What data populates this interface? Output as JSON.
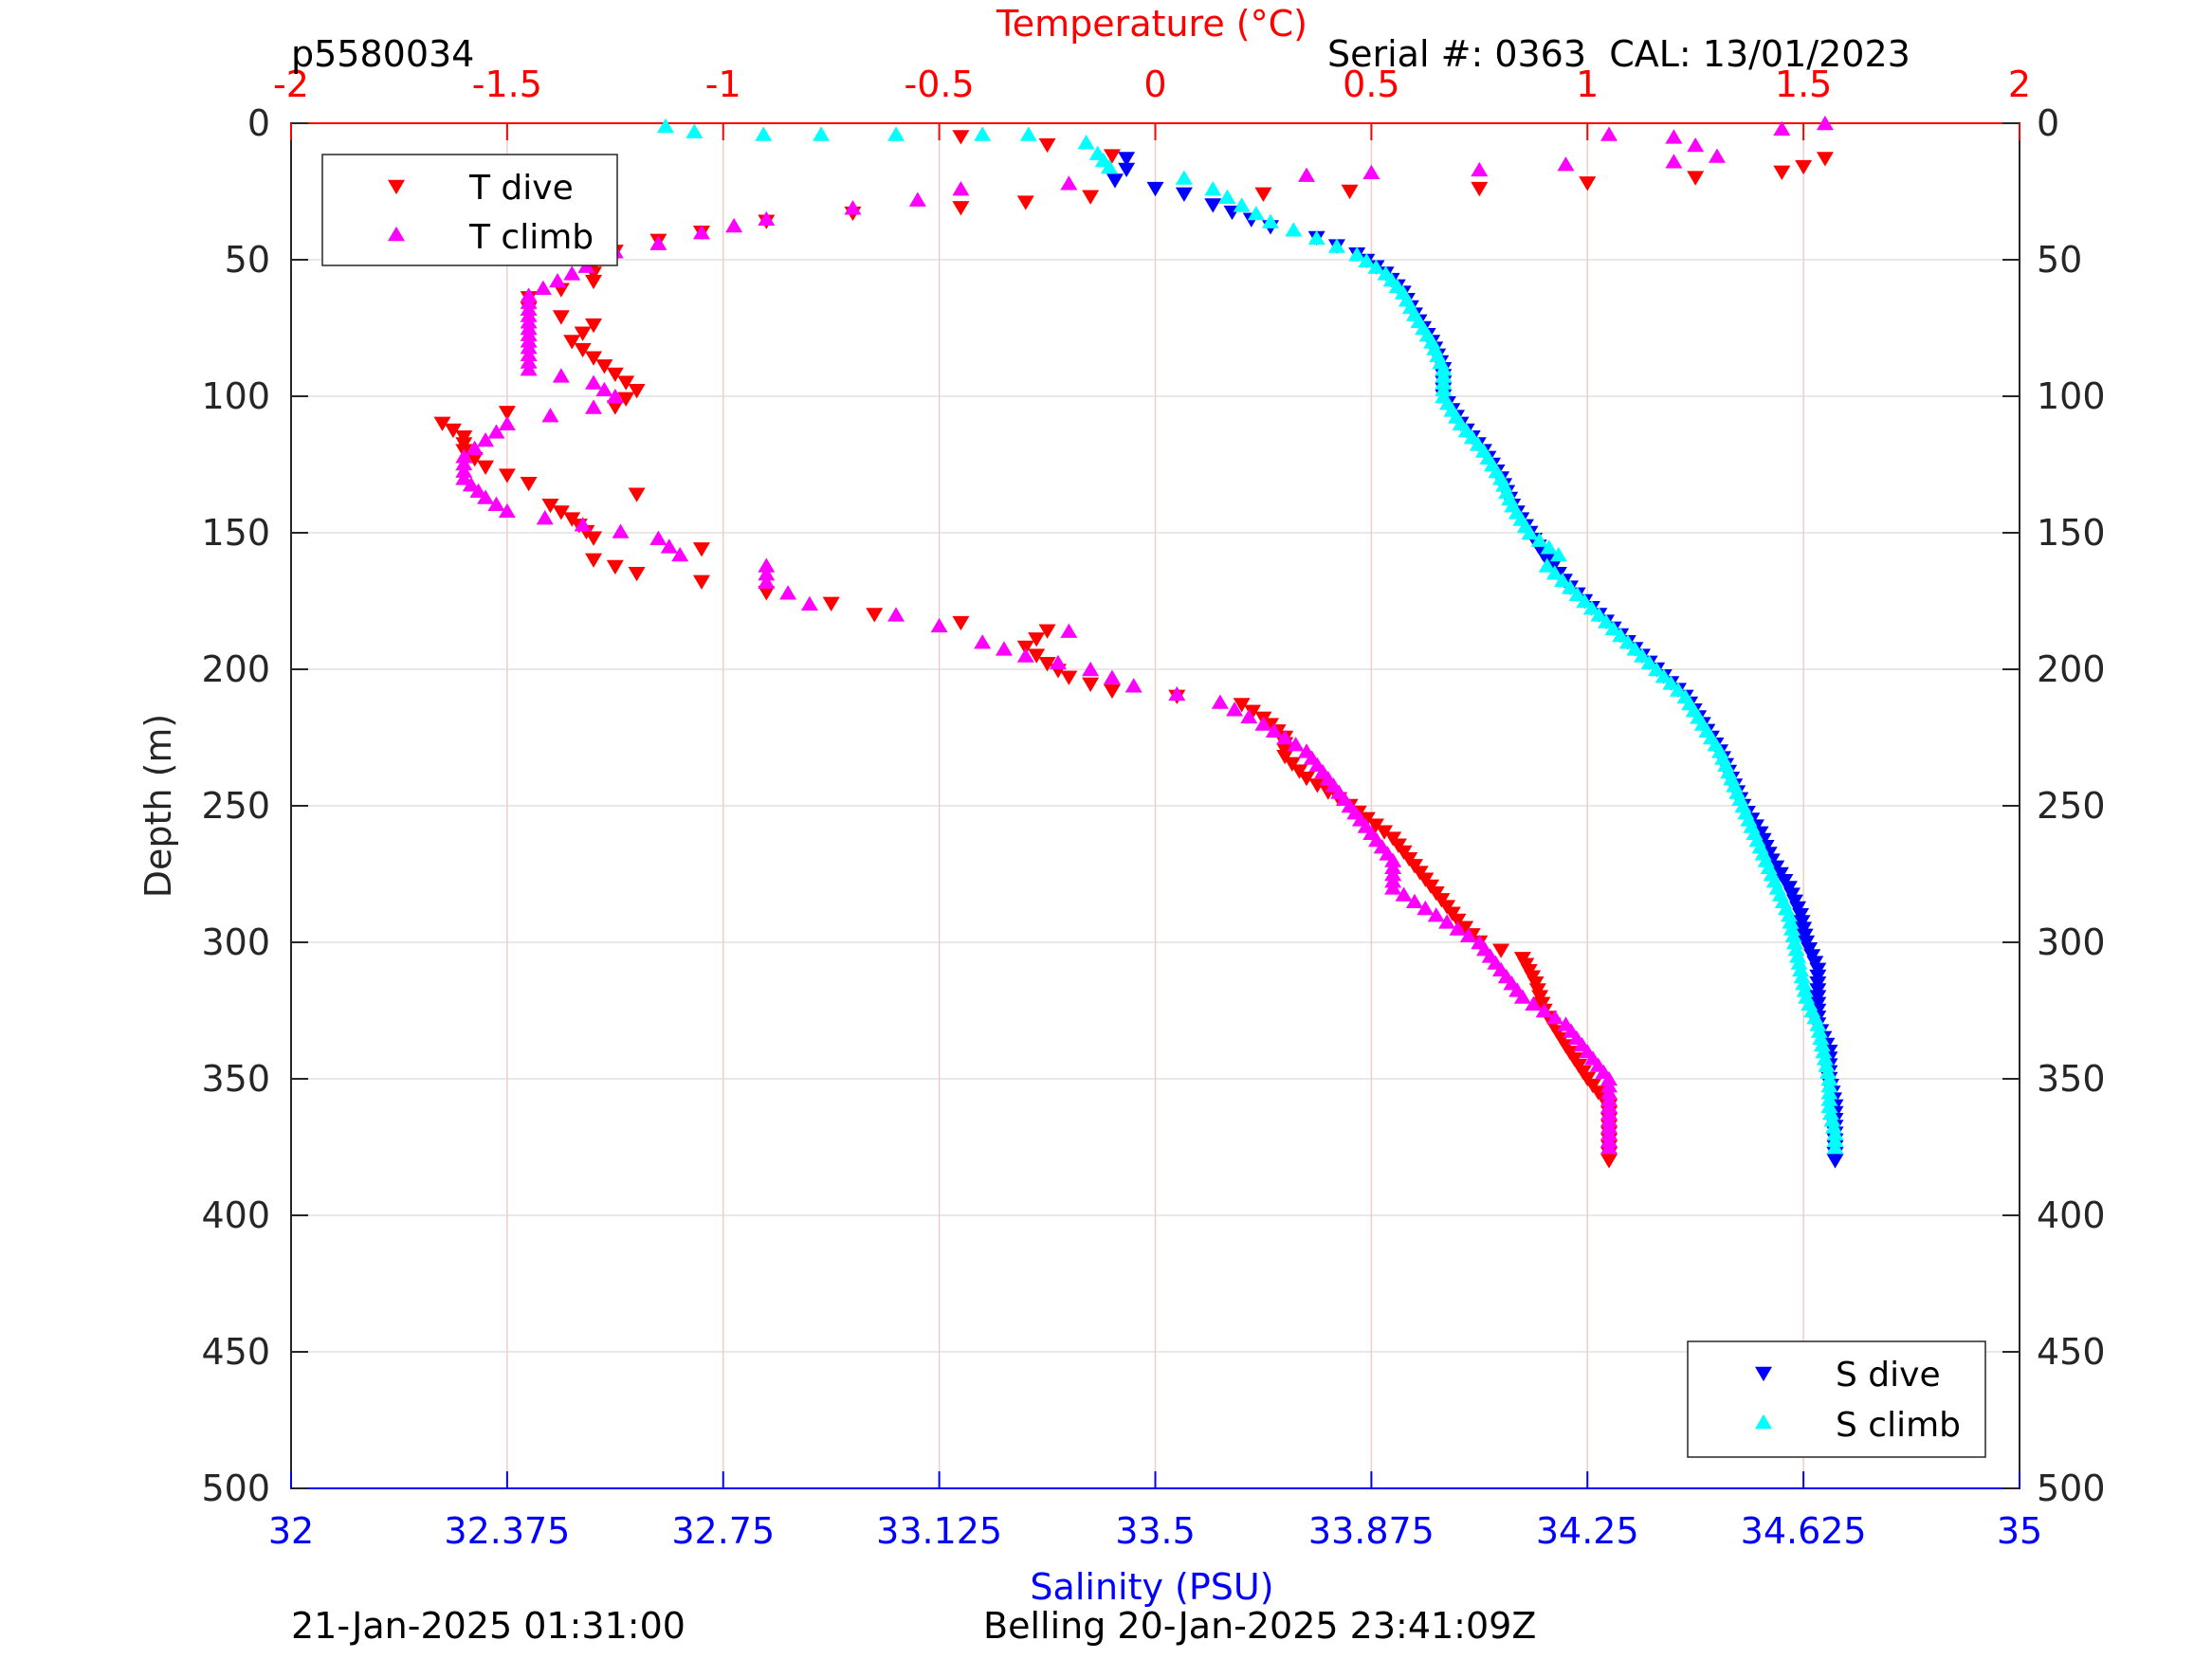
{
  "header": {
    "profile_id": "p5580034",
    "serial_cal": "Serial #: 0363  CAL: 13/01/2023"
  },
  "footer": {
    "left_time": "21-Jan-2025 01:31:00",
    "center_text": "Belling 20-Jan-2025 23:41:09Z"
  },
  "colors": {
    "t_dive": "#ff0000",
    "t_climb": "#ff00ff",
    "s_dive": "#0000ff",
    "s_climb": "#00ffff",
    "temp_axis": "#ff0000",
    "sal_axis": "#0000ff",
    "grid": "#e0e0e0"
  },
  "chart_data": {
    "type": "scatter",
    "ylabel": "Depth (m)",
    "ylim": [
      0,
      500
    ],
    "y_reversed": true,
    "y_ticks": [
      0,
      50,
      100,
      150,
      200,
      250,
      300,
      350,
      400,
      450,
      500
    ],
    "y_tick_labels": [
      "0",
      "50",
      "100",
      "150",
      "200",
      "250",
      "300",
      "350",
      "400",
      "450",
      "500"
    ],
    "x_top": {
      "label": "Temperature (°C)",
      "lim": [
        -2,
        2
      ],
      "ticks": [
        -2,
        -1.5,
        -1,
        -0.5,
        0,
        0.5,
        1,
        1.5,
        2
      ],
      "tick_labels": [
        "-2",
        "-1.5",
        "-1",
        "-0.5",
        "0",
        "0.5",
        "1",
        "1.5",
        "2"
      ]
    },
    "x_bottom": {
      "label": "Salinity (PSU)",
      "lim": [
        32,
        35
      ],
      "ticks": [
        32,
        32.375,
        32.75,
        33.125,
        33.5,
        33.875,
        34.25,
        34.625,
        35
      ],
      "tick_labels": [
        "32",
        "32.375",
        "32.75",
        "33.125",
        "33.5",
        "33.875",
        "34.25",
        "34.625",
        "35"
      ]
    },
    "grid": true,
    "legends": [
      {
        "position": "top-left",
        "entries": [
          "T dive",
          "T climb"
        ]
      },
      {
        "position": "bottom-right",
        "entries": [
          "S dive",
          "S climb"
        ]
      }
    ],
    "series": [
      {
        "name": "T dive",
        "axis": "temperature",
        "marker": "triangle-down",
        "points": [
          [
            -0.45,
            5
          ],
          [
            -0.25,
            8
          ],
          [
            -0.1,
            12
          ],
          [
            1.55,
            13
          ],
          [
            1.5,
            16
          ],
          [
            1.45,
            18
          ],
          [
            1.25,
            20
          ],
          [
            1.0,
            22
          ],
          [
            0.75,
            24
          ],
          [
            0.45,
            25
          ],
          [
            0.25,
            26
          ],
          [
            -0.15,
            27
          ],
          [
            -0.3,
            29
          ],
          [
            -0.45,
            31
          ],
          [
            -0.7,
            33
          ],
          [
            -0.9,
            36
          ],
          [
            -1.05,
            40
          ],
          [
            -1.15,
            43
          ],
          [
            -1.25,
            47
          ],
          [
            -1.3,
            52
          ],
          [
            -1.3,
            58
          ],
          [
            -1.45,
            64
          ],
          [
            -1.45,
            68
          ],
          [
            -1.3,
            74
          ],
          [
            -1.35,
            80
          ],
          [
            -1.3,
            86
          ],
          [
            -1.25,
            92
          ],
          [
            -1.2,
            98
          ],
          [
            -1.25,
            104
          ],
          [
            -1.5,
            106
          ],
          [
            -1.65,
            110
          ],
          [
            -1.6,
            115
          ],
          [
            -1.6,
            120
          ],
          [
            -1.55,
            126
          ],
          [
            -1.45,
            132
          ],
          [
            -1.2,
            136
          ],
          [
            -1.4,
            140
          ],
          [
            -1.35,
            145
          ],
          [
            -1.3,
            152
          ],
          [
            -1.05,
            156
          ],
          [
            -1.3,
            160
          ],
          [
            -1.2,
            165
          ],
          [
            -1.05,
            168
          ],
          [
            -0.9,
            172
          ],
          [
            -0.75,
            176
          ],
          [
            -0.65,
            180
          ],
          [
            -0.45,
            183
          ],
          [
            -0.25,
            186
          ],
          [
            -0.3,
            192
          ],
          [
            -0.25,
            198
          ],
          [
            -0.2,
            203
          ],
          [
            -0.1,
            208
          ],
          [
            0.05,
            210
          ],
          [
            0.2,
            213
          ],
          [
            0.25,
            218
          ],
          [
            0.3,
            225
          ],
          [
            0.3,
            232
          ],
          [
            0.35,
            240
          ],
          [
            0.45,
            250
          ],
          [
            0.55,
            262
          ],
          [
            0.6,
            272
          ],
          [
            0.65,
            282
          ],
          [
            0.7,
            292
          ],
          [
            0.75,
            300
          ],
          [
            0.85,
            306
          ],
          [
            0.88,
            315
          ],
          [
            0.9,
            325
          ],
          [
            0.95,
            338
          ],
          [
            1.0,
            350
          ],
          [
            1.05,
            360
          ],
          [
            1.05,
            370
          ],
          [
            1.05,
            380
          ]
        ]
      },
      {
        "name": "T climb",
        "axis": "temperature",
        "marker": "triangle-up",
        "points": [
          [
            1.55,
            0
          ],
          [
            1.45,
            2
          ],
          [
            1.05,
            4
          ],
          [
            1.2,
            5
          ],
          [
            1.25,
            8
          ],
          [
            1.3,
            12
          ],
          [
            1.2,
            14
          ],
          [
            0.95,
            15
          ],
          [
            0.75,
            17
          ],
          [
            0.5,
            18
          ],
          [
            0.35,
            19
          ],
          [
            -0.2,
            22
          ],
          [
            -0.45,
            24
          ],
          [
            -0.55,
            28
          ],
          [
            -0.7,
            31
          ],
          [
            -0.9,
            35
          ],
          [
            -1.05,
            40
          ],
          [
            -1.15,
            44
          ],
          [
            -1.25,
            47
          ],
          [
            -1.35,
            55
          ],
          [
            -1.45,
            63
          ],
          [
            -1.45,
            68
          ],
          [
            -1.45,
            75
          ],
          [
            -1.45,
            82
          ],
          [
            -1.45,
            90
          ],
          [
            -1.3,
            95
          ],
          [
            -1.25,
            100
          ],
          [
            -1.3,
            104
          ],
          [
            -1.5,
            110
          ],
          [
            -1.55,
            116
          ],
          [
            -1.6,
            122
          ],
          [
            -1.6,
            130
          ],
          [
            -1.55,
            137
          ],
          [
            -1.5,
            142
          ],
          [
            -1.15,
            152
          ],
          [
            -1.1,
            158
          ],
          [
            -0.9,
            162
          ],
          [
            -0.9,
            168
          ],
          [
            -0.85,
            172
          ],
          [
            -0.8,
            176
          ],
          [
            -0.6,
            180
          ],
          [
            -0.5,
            184
          ],
          [
            -0.2,
            186
          ],
          [
            -0.4,
            190
          ],
          [
            -0.3,
            195
          ],
          [
            -0.15,
            200
          ],
          [
            -0.05,
            206
          ],
          [
            0.15,
            212
          ],
          [
            0.25,
            220
          ],
          [
            0.35,
            230
          ],
          [
            0.4,
            240
          ],
          [
            0.45,
            250
          ],
          [
            0.5,
            260
          ],
          [
            0.55,
            270
          ],
          [
            0.55,
            280
          ],
          [
            0.65,
            290
          ],
          [
            0.75,
            300
          ],
          [
            0.8,
            310
          ],
          [
            0.85,
            320
          ],
          [
            0.95,
            330
          ],
          [
            1.0,
            340
          ],
          [
            1.05,
            350
          ],
          [
            1.05,
            360
          ],
          [
            1.05,
            370
          ],
          [
            1.05,
            375
          ]
        ]
      },
      {
        "name": "S dive",
        "axis": "salinity",
        "marker": "triangle-down",
        "points": [
          [
            33.45,
            13
          ],
          [
            33.45,
            17
          ],
          [
            33.43,
            21
          ],
          [
            33.5,
            24
          ],
          [
            33.55,
            26
          ],
          [
            33.6,
            30
          ],
          [
            33.7,
            38
          ],
          [
            33.78,
            42
          ],
          [
            33.85,
            48
          ],
          [
            33.9,
            55
          ],
          [
            33.93,
            62
          ],
          [
            33.95,
            70
          ],
          [
            33.98,
            80
          ],
          [
            34.0,
            90
          ],
          [
            34.0,
            100
          ],
          [
            34.03,
            110
          ],
          [
            34.07,
            120
          ],
          [
            34.1,
            130
          ],
          [
            34.12,
            140
          ],
          [
            34.15,
            150
          ],
          [
            34.18,
            160
          ],
          [
            34.22,
            170
          ],
          [
            34.27,
            180
          ],
          [
            34.32,
            190
          ],
          [
            34.37,
            200
          ],
          [
            34.42,
            210
          ],
          [
            34.45,
            220
          ],
          [
            34.48,
            230
          ],
          [
            34.5,
            240
          ],
          [
            34.52,
            250
          ],
          [
            34.55,
            260
          ],
          [
            34.57,
            270
          ],
          [
            34.6,
            280
          ],
          [
            34.62,
            290
          ],
          [
            34.63,
            300
          ],
          [
            34.65,
            310
          ],
          [
            34.65,
            320
          ],
          [
            34.65,
            330
          ],
          [
            34.67,
            340
          ],
          [
            34.67,
            350
          ],
          [
            34.68,
            360
          ],
          [
            34.68,
            370
          ],
          [
            34.68,
            380
          ]
        ]
      },
      {
        "name": "S climb",
        "axis": "salinity",
        "marker": "triangle-up",
        "points": [
          [
            32.65,
            1
          ],
          [
            32.7,
            3
          ],
          [
            32.82,
            4
          ],
          [
            32.92,
            4
          ],
          [
            33.05,
            4
          ],
          [
            33.2,
            4
          ],
          [
            33.28,
            4
          ],
          [
            33.38,
            7
          ],
          [
            33.4,
            11
          ],
          [
            33.42,
            16
          ],
          [
            33.55,
            20
          ],
          [
            33.6,
            24
          ],
          [
            33.65,
            30
          ],
          [
            33.7,
            36
          ],
          [
            33.78,
            42
          ],
          [
            33.85,
            48
          ],
          [
            33.9,
            55
          ],
          [
            33.93,
            62
          ],
          [
            33.95,
            70
          ],
          [
            33.98,
            80
          ],
          [
            34.0,
            90
          ],
          [
            34.0,
            100
          ],
          [
            34.03,
            110
          ],
          [
            34.07,
            120
          ],
          [
            34.1,
            130
          ],
          [
            34.12,
            140
          ],
          [
            34.15,
            150
          ],
          [
            34.2,
            158
          ],
          [
            34.18,
            162
          ],
          [
            34.22,
            170
          ],
          [
            34.27,
            180
          ],
          [
            34.32,
            190
          ],
          [
            34.37,
            200
          ],
          [
            34.42,
            210
          ],
          [
            34.45,
            220
          ],
          [
            34.48,
            230
          ],
          [
            34.5,
            240
          ],
          [
            34.52,
            250
          ],
          [
            34.54,
            260
          ],
          [
            34.56,
            270
          ],
          [
            34.58,
            280
          ],
          [
            34.6,
            290
          ],
          [
            34.61,
            300
          ],
          [
            34.62,
            310
          ],
          [
            34.63,
            320
          ],
          [
            34.65,
            330
          ],
          [
            34.66,
            340
          ],
          [
            34.67,
            350
          ],
          [
            34.67,
            360
          ],
          [
            34.68,
            370
          ],
          [
            34.68,
            375
          ]
        ]
      }
    ]
  }
}
